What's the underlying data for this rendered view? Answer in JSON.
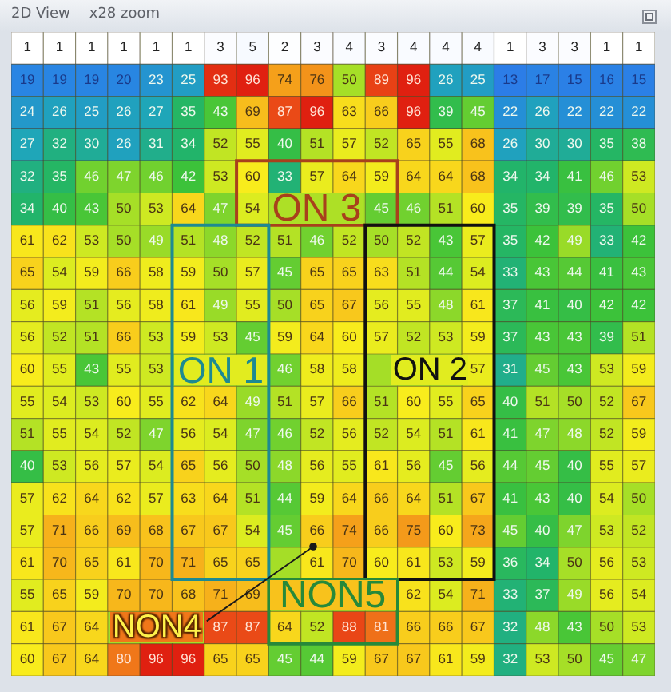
{
  "chart_data": {
    "type": "heatmap",
    "title": "2D View",
    "subtitle": "x28 zoom",
    "annotations": [
      "ON 3",
      "ON 1",
      "ON 2",
      "NON4",
      "NON5"
    ],
    "categories": [
      null,
      null,
      null,
      null,
      null,
      null,
      null,
      null,
      null,
      null,
      null,
      null,
      null,
      null,
      null,
      null,
      null,
      null,
      null,
      null
    ],
    "y_categories": [
      null,
      null,
      null,
      null,
      null,
      null,
      null,
      null,
      null,
      null,
      null,
      null,
      null,
      null,
      null,
      null,
      null,
      null,
      null,
      null
    ],
    "cells": [
      [
        1,
        1,
        1,
        1,
        1,
        1,
        3,
        5,
        2,
        3,
        4,
        3,
        4,
        4,
        4,
        1,
        3,
        3,
        1,
        1
      ],
      [
        19,
        19,
        19,
        20,
        23,
        25,
        93,
        96,
        74,
        76,
        50,
        89,
        96,
        26,
        25,
        13,
        17,
        15,
        16,
        15
      ],
      [
        24,
        26,
        25,
        26,
        27,
        35,
        43,
        69,
        87,
        96,
        63,
        66,
        96,
        39,
        45,
        22,
        26,
        22,
        22,
        22
      ],
      [
        27,
        32,
        30,
        26,
        31,
        34,
        52,
        55,
        40,
        51,
        57,
        52,
        65,
        55,
        68,
        26,
        30,
        30,
        35,
        38
      ],
      [
        32,
        35,
        46,
        47,
        46,
        42,
        53,
        60,
        33,
        57,
        64,
        59,
        64,
        64,
        68,
        34,
        34,
        41,
        46,
        53
      ],
      [
        34,
        40,
        43,
        50,
        53,
        64,
        47,
        54,
        null,
        null,
        null,
        45,
        46,
        51,
        60,
        35,
        39,
        39,
        35,
        50
      ],
      [
        61,
        62,
        53,
        50,
        49,
        51,
        48,
        52,
        51,
        46,
        52,
        50,
        52,
        43,
        57,
        35,
        42,
        49,
        33,
        42
      ],
      [
        65,
        54,
        59,
        66,
        58,
        59,
        50,
        57,
        45,
        65,
        65,
        63,
        51,
        44,
        54,
        33,
        43,
        44,
        41,
        43
      ],
      [
        56,
        59,
        51,
        56,
        58,
        61,
        49,
        55,
        50,
        65,
        67,
        56,
        55,
        48,
        61,
        37,
        41,
        40,
        42,
        42
      ],
      [
        56,
        52,
        51,
        66,
        53,
        59,
        53,
        45,
        59,
        64,
        60,
        57,
        52,
        53,
        59,
        37,
        43,
        43,
        39,
        51
      ],
      [
        60,
        55,
        43,
        55,
        53,
        null,
        null,
        null,
        46,
        58,
        58,
        null,
        null,
        null,
        57,
        31,
        45,
        43,
        53,
        59
      ],
      [
        55,
        54,
        53,
        60,
        55,
        62,
        64,
        49,
        51,
        57,
        66,
        51,
        60,
        55,
        65,
        40,
        51,
        50,
        52,
        67
      ],
      [
        51,
        55,
        54,
        52,
        47,
        56,
        54,
        47,
        46,
        52,
        56,
        52,
        54,
        51,
        61,
        41,
        47,
        48,
        52,
        59
      ],
      [
        40,
        53,
        56,
        57,
        54,
        65,
        56,
        50,
        48,
        56,
        55,
        61,
        56,
        45,
        56,
        44,
        45,
        40,
        55,
        57
      ],
      [
        57,
        62,
        64,
        62,
        57,
        63,
        64,
        51,
        44,
        59,
        64,
        66,
        64,
        51,
        67,
        41,
        43,
        40,
        54,
        50
      ],
      [
        57,
        71,
        66,
        69,
        68,
        67,
        67,
        54,
        45,
        66,
        74,
        66,
        75,
        60,
        73,
        45,
        40,
        47,
        53,
        52
      ],
      [
        61,
        70,
        65,
        61,
        70,
        71,
        65,
        65,
        null,
        61,
        70,
        60,
        61,
        53,
        59,
        36,
        34,
        50,
        56,
        53
      ],
      [
        55,
        65,
        59,
        70,
        70,
        68,
        71,
        69,
        null,
        null,
        null,
        null,
        62,
        54,
        71,
        33,
        37,
        49,
        56,
        54
      ],
      [
        61,
        67,
        64,
        null,
        null,
        null,
        87,
        87,
        64,
        52,
        88,
        81,
        66,
        66,
        67,
        32,
        48,
        43,
        50,
        53
      ],
      [
        60,
        67,
        64,
        80,
        96,
        96,
        65,
        65,
        45,
        44,
        59,
        67,
        67,
        61,
        59,
        32,
        53,
        50,
        45,
        47
      ]
    ],
    "data_labels": true
  }
}
